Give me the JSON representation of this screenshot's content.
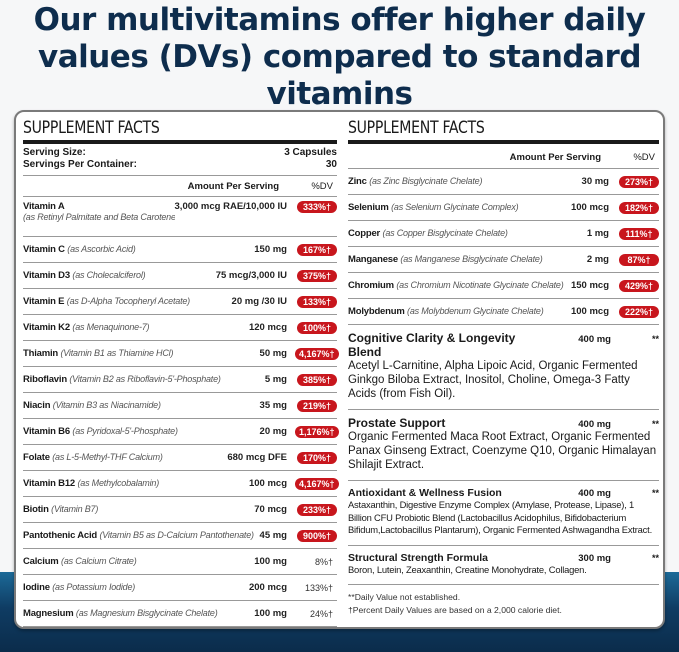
{
  "headline": "Our multivitamins offer higher daily values (DVs) compared to standard vitamins",
  "colors": {
    "headline": "#0e2d4d",
    "dv_badge": "#c8161d",
    "background_wave": "#0f3c63"
  },
  "left": {
    "title": "SUPPLEMENT FACTS",
    "serving_size_label": "Serving Size:",
    "serving_size": "3 Capsules",
    "servings_label": "Servings Per Container:",
    "servings": "30",
    "amount_header": "Amount Per Serving",
    "dv_header": "%DV",
    "rows": [
      {
        "name": "Vitamin A",
        "source": "(as Retinyl Palmitate and Beta Carotene)",
        "amount": "3,000 mcg RAE/10,000 IU",
        "dv": "333%†",
        "highlight": true
      },
      {
        "name": "Vitamin C",
        "source": "(as Ascorbic Acid)",
        "amount": "150 mg",
        "dv": "167%†",
        "highlight": true
      },
      {
        "name": "Vitamin D3",
        "source": "(as Cholecalciferol)",
        "amount": "75 mcg/3,000 IU",
        "dv": "375%†",
        "highlight": true
      },
      {
        "name": "Vitamin E",
        "source": "(as D-Alpha Tocopheryl Acetate)",
        "amount": "20 mg /30 IU",
        "dv": "133%†",
        "highlight": true
      },
      {
        "name": "Vitamin K2",
        "source": "(as Menaquinone-7)",
        "amount": "120 mcg",
        "dv": "100%†",
        "highlight": true
      },
      {
        "name": "Thiamin",
        "source": "(Vitamin B1 as Thiamine HCl)",
        "amount": "50 mg",
        "dv": "4,167%†",
        "highlight": true
      },
      {
        "name": "Riboflavin",
        "source": "(Vitamin B2 as Riboflavin-5'-Phosphate)",
        "amount": "5 mg",
        "dv": "385%†",
        "highlight": true
      },
      {
        "name": "Niacin",
        "source": "(Vitamin B3 as Niacinamide)",
        "amount": "35 mg",
        "dv": "219%†",
        "highlight": true
      },
      {
        "name": "Vitamin B6",
        "source": "(as Pyridoxal-5'-Phosphate)",
        "amount": "20 mg",
        "dv": "1,176%†",
        "highlight": true
      },
      {
        "name": "Folate",
        "source": "(as L-5-Methyl-THF Calcium)",
        "amount": "680 mcg DFE",
        "dv": "170%†",
        "highlight": true
      },
      {
        "name": "Vitamin B12",
        "source": "(as Methylcobalamin)",
        "amount": "100 mcg",
        "dv": "4,167%†",
        "highlight": true
      },
      {
        "name": "Biotin",
        "source": "(Vitamin B7)",
        "amount": "70 mcg",
        "dv": "233%†",
        "highlight": true
      },
      {
        "name": "Pantothenic Acid",
        "source": "(Vitamin B5 as D-Calcium Pantothenate)",
        "amount": "45 mg",
        "dv": "900%†",
        "highlight": true
      },
      {
        "name": "Calcium",
        "source": "(as Calcium Citrate)",
        "amount": "100 mg",
        "dv": "8%†",
        "highlight": false
      },
      {
        "name": "Iodine",
        "source": "(as Potassium Iodide)",
        "amount": "200 mcg",
        "dv": "133%†",
        "highlight": false
      },
      {
        "name": "Magnesium",
        "source": "(as Magnesium Bisglycinate Chelate)",
        "amount": "100 mg",
        "dv": "24%†",
        "highlight": false
      }
    ]
  },
  "right": {
    "title": "SUPPLEMENT FACTS",
    "amount_header": "Amount Per Serving",
    "dv_header": "%DV",
    "rows": [
      {
        "name": "Zinc",
        "source": "(as Zinc Bisglycinate Chelate)",
        "amount": "30 mg",
        "dv": "273%†",
        "highlight": true
      },
      {
        "name": "Selenium",
        "source": "(as Selenium Glycinate Complex)",
        "amount": "100 mcg",
        "dv": "182%†",
        "highlight": true
      },
      {
        "name": "Copper",
        "source": "(as Copper Bisglycinate Chelate)",
        "amount": "1 mg",
        "dv": "111%†",
        "highlight": true
      },
      {
        "name": "Manganese",
        "source": "(as Manganese Bisglycinate Chelate)",
        "amount": "2 mg",
        "dv": "87%†",
        "highlight": true
      },
      {
        "name": "Chromium",
        "source": "(as Chromium Nicotinate Glycinate Chelate)",
        "amount": "150 mcg",
        "dv": "429%†",
        "highlight": true
      },
      {
        "name": "Molybdenum",
        "source": "(as Molybdenum Glycinate Chelate)",
        "amount": "100 mcg",
        "dv": "222%†",
        "highlight": true
      }
    ],
    "blends": [
      {
        "name": "Cognitive Clarity & Longevity Blend",
        "amount": "400 mg",
        "dv": "**",
        "ingredients": "Acetyl L-Carnitine, Alpha Lipoic Acid, Organic Fermented Ginkgo Biloba Extract, Inositol, Choline, Omega-3 Fatty Acids (from Fish Oil).",
        "small": false
      },
      {
        "name": "Prostate Support",
        "amount": "400 mg",
        "dv": "**",
        "ingredients": "Organic Fermented Maca Root Extract, Organic Fermented Panax Ginseng Extract, Coenzyme Q10, Organic Himalayan Shilajit Extract.",
        "small": false
      },
      {
        "name": "Antioxidant & Wellness Fusion",
        "amount": "400 mg",
        "dv": "**",
        "ingredients": "Astaxanthin, Digestive Enzyme Complex (Amylase, Protease, Lipase), 1 Billion CFU Probiotic Blend (Lactobacillus Acidophilus, Bifidobacterium Bifidum,Lactobacillus Plantarum), Organic Fermented Ashwagandha Extract.",
        "small": true
      },
      {
        "name": "Structural Strength Formula",
        "amount": "300 mg",
        "dv": "**",
        "ingredients": "Boron, Lutein, Zeaxanthin, Creatine Monohydrate, Collagen.",
        "small": true
      }
    ],
    "footnotes": [
      "**Daily Value not established.",
      "†Percent Daily Values are based on a 2,000 calorie diet."
    ]
  }
}
